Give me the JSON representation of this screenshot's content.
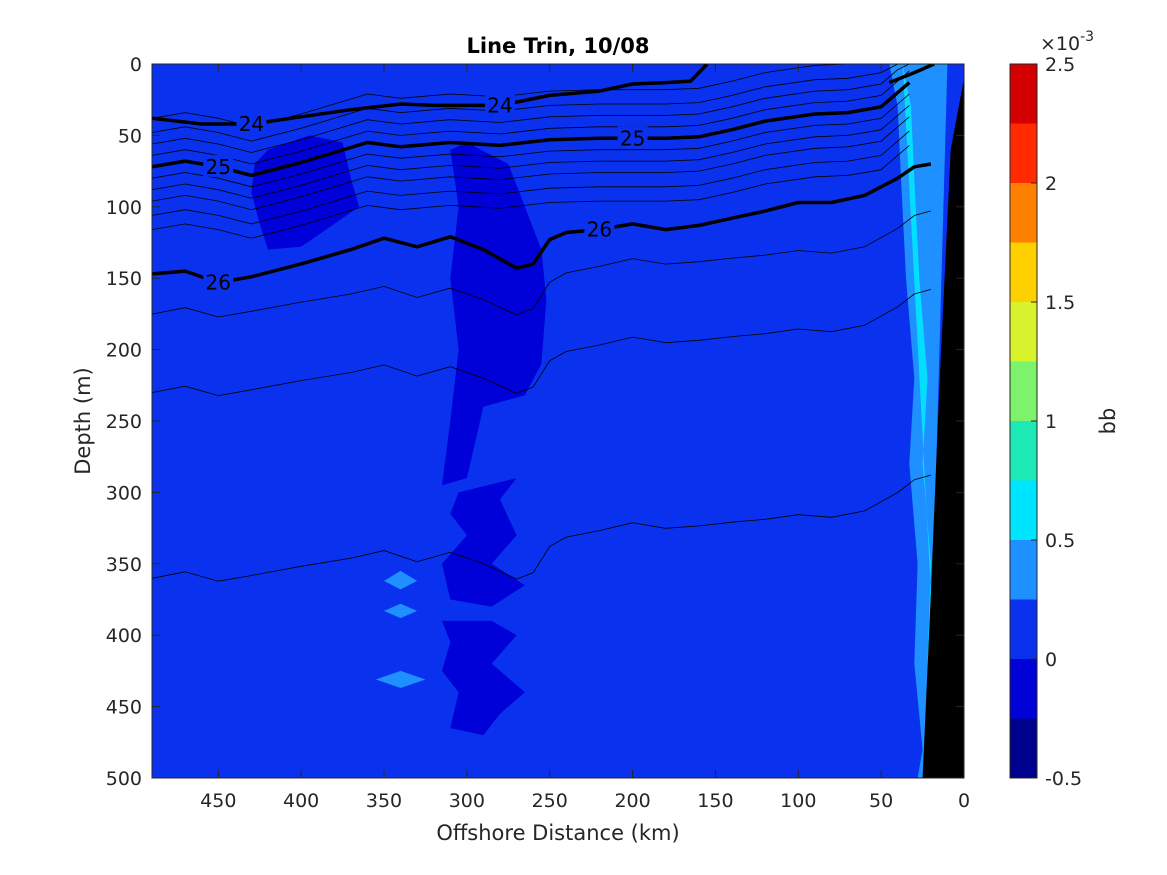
{
  "chart_data": {
    "type": "heatmap",
    "title": "Line Trin, 10/08",
    "xlabel": "Offshore Distance (km)",
    "ylabel": "Depth (m)",
    "xlim": [
      490,
      0
    ],
    "ylim": [
      0,
      500
    ],
    "x_ticks": [
      450,
      400,
      350,
      300,
      250,
      200,
      150,
      100,
      50,
      0
    ],
    "y_ticks": [
      0,
      50,
      100,
      150,
      200,
      250,
      300,
      350,
      400,
      450,
      500
    ],
    "colorbar": {
      "label": "bb",
      "exponent_label": "×10",
      "exponent_power": "-3",
      "range": [
        -0.5,
        2.5
      ],
      "tick_values": [
        -0.5,
        0,
        0.5,
        1,
        1.5,
        2,
        2.5
      ],
      "tick_labels": [
        "-0.5",
        "0",
        "0.5",
        "1",
        "1.5",
        "2",
        "2.5"
      ],
      "levels": [
        -0.5,
        -0.25,
        0,
        0.25,
        0.5,
        0.75,
        1,
        1.25,
        1.5,
        1.75,
        2,
        2.25,
        2.5
      ],
      "colors": [
        "#00008f",
        "#0000d9",
        "#0a32ee",
        "#1e90ff",
        "#00e5ff",
        "#1de9b6",
        "#7df26b",
        "#d8f22b",
        "#ffd000",
        "#ff7f00",
        "#ff2a00",
        "#d40000"
      ]
    },
    "background_value": 0.1,
    "background_color": "#0a32ee",
    "density_contours": [
      {
        "label": "24",
        "points": [
          [
            490,
            38
          ],
          [
            460,
            42
          ],
          [
            430,
            42
          ],
          [
            400,
            37
          ],
          [
            370,
            32
          ],
          [
            340,
            28
          ],
          [
            320,
            29
          ],
          [
            300,
            29
          ],
          [
            280,
            29
          ],
          [
            250,
            22
          ],
          [
            220,
            19
          ],
          [
            200,
            14
          ],
          [
            180,
            13
          ],
          [
            165,
            12
          ],
          [
            160,
            6
          ],
          [
            155,
            0
          ]
        ]
      },
      {
        "label": "24",
        "points": [
          [
            45,
            13
          ],
          [
            30,
            6
          ],
          [
            18,
            0
          ]
        ]
      },
      {
        "label": "25",
        "points": [
          [
            490,
            72
          ],
          [
            470,
            68
          ],
          [
            450,
            72
          ],
          [
            430,
            78
          ],
          [
            400,
            69
          ],
          [
            380,
            62
          ],
          [
            360,
            55
          ],
          [
            340,
            58
          ],
          [
            310,
            55
          ],
          [
            280,
            57
          ],
          [
            250,
            53
          ],
          [
            220,
            52
          ],
          [
            200,
            52
          ],
          [
            180,
            52
          ],
          [
            160,
            51
          ],
          [
            140,
            46
          ],
          [
            120,
            40
          ],
          [
            90,
            35
          ],
          [
            70,
            34
          ],
          [
            50,
            30
          ],
          [
            40,
            20
          ],
          [
            33,
            13
          ]
        ]
      },
      {
        "label": "26",
        "points": [
          [
            490,
            147
          ],
          [
            470,
            145
          ],
          [
            450,
            153
          ],
          [
            430,
            149
          ],
          [
            400,
            140
          ],
          [
            370,
            130
          ],
          [
            350,
            122
          ],
          [
            330,
            128
          ],
          [
            310,
            121
          ],
          [
            290,
            130
          ],
          [
            270,
            143
          ],
          [
            260,
            140
          ],
          [
            250,
            123
          ],
          [
            240,
            118
          ],
          [
            220,
            116
          ],
          [
            200,
            112
          ],
          [
            180,
            116
          ],
          [
            160,
            113
          ],
          [
            140,
            108
          ],
          [
            120,
            103
          ],
          [
            100,
            97
          ],
          [
            80,
            97
          ],
          [
            60,
            92
          ],
          [
            40,
            80
          ],
          [
            30,
            72
          ],
          [
            20,
            70
          ]
        ]
      }
    ],
    "anomalies": [
      {
        "label": "low",
        "value": -0.1,
        "points": [
          [
            420,
            60
          ],
          [
            395,
            50
          ],
          [
            375,
            55
          ],
          [
            370,
            80
          ],
          [
            365,
            100
          ],
          [
            380,
            112
          ],
          [
            390,
            120
          ],
          [
            400,
            128
          ],
          [
            420,
            130
          ],
          [
            425,
            112
          ],
          [
            430,
            90
          ],
          [
            428,
            70
          ]
        ]
      },
      {
        "label": "low",
        "value": -0.1,
        "points": [
          [
            300,
            55
          ],
          [
            275,
            70
          ],
          [
            265,
            100
          ],
          [
            255,
            130
          ],
          [
            252,
            165
          ],
          [
            255,
            210
          ],
          [
            265,
            232
          ],
          [
            290,
            240
          ],
          [
            300,
            290
          ],
          [
            315,
            295
          ],
          [
            310,
            250
          ],
          [
            305,
            200
          ],
          [
            310,
            150
          ],
          [
            305,
            100
          ],
          [
            310,
            60
          ]
        ]
      },
      {
        "label": "low",
        "value": -0.1,
        "points": [
          [
            305,
            300
          ],
          [
            270,
            290
          ],
          [
            280,
            305
          ],
          [
            270,
            330
          ],
          [
            285,
            350
          ],
          [
            265,
            365
          ],
          [
            285,
            380
          ],
          [
            310,
            375
          ],
          [
            315,
            350
          ],
          [
            300,
            330
          ],
          [
            310,
            315
          ]
        ]
      },
      {
        "label": "low",
        "value": -0.1,
        "points": [
          [
            315,
            390
          ],
          [
            285,
            390
          ],
          [
            270,
            400
          ],
          [
            285,
            420
          ],
          [
            265,
            440
          ],
          [
            280,
            455
          ],
          [
            290,
            470
          ],
          [
            310,
            465
          ],
          [
            305,
            440
          ],
          [
            315,
            425
          ],
          [
            310,
            405
          ]
        ]
      },
      {
        "label": "high",
        "value": 0.4,
        "points": [
          [
            340,
            355
          ],
          [
            330,
            362
          ],
          [
            340,
            368
          ],
          [
            350,
            362
          ]
        ]
      },
      {
        "label": "high",
        "value": 0.4,
        "points": [
          [
            340,
            378
          ],
          [
            330,
            383
          ],
          [
            340,
            388
          ],
          [
            350,
            383
          ]
        ]
      },
      {
        "label": "high",
        "value": 0.4,
        "points": [
          [
            340,
            425
          ],
          [
            325,
            431
          ],
          [
            340,
            437
          ],
          [
            355,
            431
          ]
        ]
      }
    ],
    "shelf_band": [
      [
        45,
        0
      ],
      [
        40,
        30
      ],
      [
        38,
        80
      ],
      [
        35,
        150
      ],
      [
        30,
        220
      ],
      [
        33,
        280
      ],
      [
        28,
        350
      ],
      [
        30,
        420
      ],
      [
        25,
        480
      ],
      [
        28,
        500
      ],
      [
        22,
        500
      ],
      [
        10,
        0
      ]
    ],
    "seafloor": [
      [
        25,
        500
      ],
      [
        0,
        500
      ],
      [
        0,
        10
      ],
      [
        8,
        60
      ],
      [
        15,
        230
      ],
      [
        20,
        370
      ]
    ]
  }
}
